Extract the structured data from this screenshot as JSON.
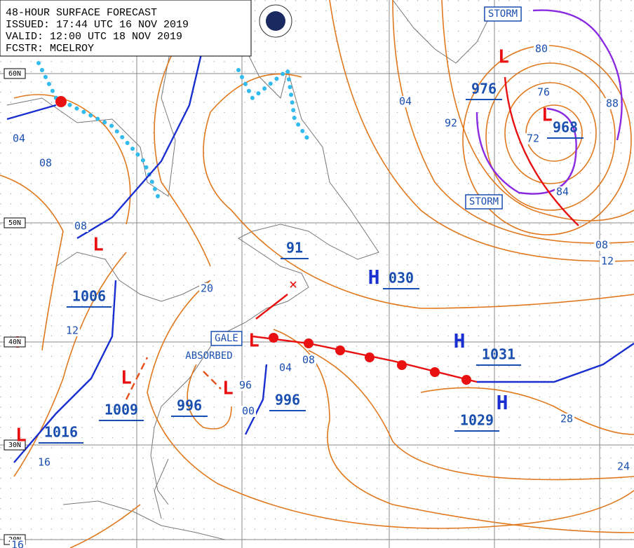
{
  "header": {
    "title": "48-HOUR SURFACE FORECAST",
    "issued": "ISSUED: 17:44 UTC 16 NOV 2019",
    "valid": "VALID:  12:00 UTC 18 NOV 2019",
    "forecaster": "FCSTR: MCELROY"
  },
  "latitude_labels": [
    "60N",
    "50N",
    "40N",
    "30N",
    "20N"
  ],
  "pressure_centers": [
    {
      "symbol": "L",
      "label": "976"
    },
    {
      "symbol": "L",
      "label": "968"
    },
    {
      "symbol": "L",
      "label": "1006"
    },
    {
      "symbol": "L",
      "label": "1009"
    },
    {
      "symbol": "L",
      "label": "1016"
    },
    {
      "symbol": "L",
      "label": "996"
    },
    {
      "symbol": "L",
      "label": "996"
    },
    {
      "symbol": "H",
      "label": "030"
    },
    {
      "symbol": "H",
      "label": "1031"
    },
    {
      "symbol": "H",
      "label": "1029"
    },
    {
      "label": "91"
    }
  ],
  "isobar_labels": [
    "04",
    "08",
    "08",
    "12",
    "20",
    "16",
    "16",
    "04",
    "92",
    "80",
    "76",
    "72",
    "88",
    "84",
    "08",
    "12",
    "04",
    "08",
    "96",
    "00",
    "28",
    "24"
  ],
  "warnings": [
    "STORM",
    "STORM",
    "GALE",
    "ABSORBED"
  ]
}
